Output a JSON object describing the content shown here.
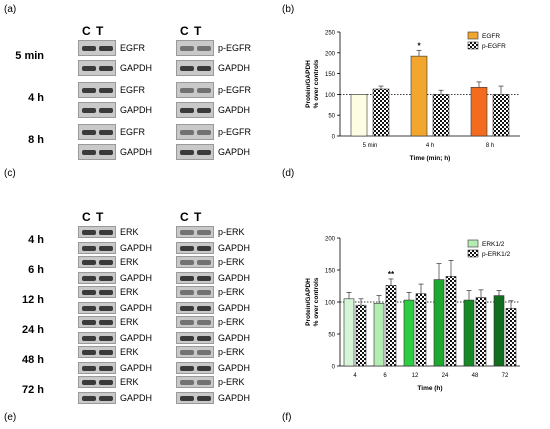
{
  "panels": {
    "a": "(a)",
    "b": "(b)",
    "c": "(c)",
    "d": "(d)",
    "e": "(e)",
    "f": "(f)"
  },
  "blots_top": {
    "lanes": [
      "C",
      "T",
      "C",
      "T"
    ],
    "rows": [
      {
        "time": "5 min",
        "left_main": "EGFR",
        "left_ref": "GAPDH",
        "right_main": "p-EGFR",
        "right_ref": "GAPDH"
      },
      {
        "time": "4 h",
        "left_main": "EGFR",
        "left_ref": "GAPDH",
        "right_main": "p-EGFR",
        "right_ref": "GAPDH"
      },
      {
        "time": "8 h",
        "left_main": "EGFR",
        "left_ref": "GAPDH",
        "right_main": "p-EGFR",
        "right_ref": "GAPDH"
      }
    ]
  },
  "blots_bottom": {
    "lanes": [
      "C",
      "T",
      "C",
      "T"
    ],
    "rows": [
      {
        "time": "4 h",
        "left_main": "ERK",
        "left_ref": "GAPDH",
        "right_main": "p-ERK",
        "right_ref": "GAPDH"
      },
      {
        "time": "6 h",
        "left_main": "ERK",
        "left_ref": "GAPDH",
        "right_main": "p-ERK",
        "right_ref": "GAPDH"
      },
      {
        "time": "12 h",
        "left_main": "ERK",
        "left_ref": "GAPDH",
        "right_main": "p-ERK",
        "right_ref": "GAPDH"
      },
      {
        "time": "24 h",
        "left_main": "ERK",
        "left_ref": "GAPDH",
        "right_main": "p-ERK",
        "right_ref": "GAPDH"
      },
      {
        "time": "48 h",
        "left_main": "ERK",
        "left_ref": "GAPDH",
        "right_main": "p-ERK",
        "right_ref": "GAPDH"
      },
      {
        "time": "72 h",
        "left_main": "ERK",
        "left_ref": "GAPDH",
        "right_main": "p-ERK",
        "right_ref": "GAPDH"
      }
    ]
  },
  "chart_data": [
    {
      "type": "bar",
      "ylabel": "Protein/GAPDH\n% over controls",
      "xlabel": "Time (min; h)",
      "ylim": [
        0,
        250
      ],
      "yticks": [
        0,
        50,
        100,
        150,
        200,
        250
      ],
      "categories": [
        "5 min",
        "4 h",
        "8 h"
      ],
      "reference_line": 100,
      "legend_position": "top-right",
      "series": [
        {
          "name": "EGFR",
          "values": [
            100,
            192,
            117
          ],
          "errors": [
            0,
            14,
            13
          ],
          "colors": [
            "#fdfde3",
            "#f2a62e",
            "#f26b1e"
          ],
          "pattern": "solid"
        },
        {
          "name": "p-EGFR",
          "values": [
            113,
            100,
            100
          ],
          "errors": [
            7,
            10,
            20
          ],
          "colors": [
            "#ffffff",
            "#ffffff",
            "#ffffff"
          ],
          "pattern": "checker"
        }
      ],
      "annotations": [
        {
          "category": "4 h",
          "series": "EGFR",
          "text": "*"
        }
      ]
    },
    {
      "type": "bar",
      "ylabel": "Protein/GAPDH\n% over controls",
      "xlabel": "Time (h)",
      "ylim": [
        0,
        200
      ],
      "yticks": [
        0,
        50,
        100,
        150,
        200
      ],
      "categories": [
        "4",
        "6",
        "12",
        "24",
        "48",
        "72"
      ],
      "reference_line": 100,
      "legend_position": "top-right",
      "series": [
        {
          "name": "ERK1/2",
          "values": [
            105,
            98,
            103,
            135,
            103,
            110
          ],
          "errors": [
            10,
            12,
            12,
            25,
            15,
            8
          ],
          "colors": [
            "#d6f5d6",
            "#b4ecb4",
            "#2ecc40",
            "#1fa830",
            "#178a26",
            "#126e1e"
          ],
          "pattern": "solid"
        },
        {
          "name": "p-ERK1/2",
          "values": [
            95,
            126,
            113,
            140,
            107,
            90
          ],
          "errors": [
            10,
            10,
            15,
            25,
            12,
            12
          ],
          "colors": [
            "#ffffff",
            "#ffffff",
            "#ffffff",
            "#ffffff",
            "#ffffff",
            "#ffffff"
          ],
          "pattern": "checker"
        }
      ],
      "annotations": [
        {
          "category": "6",
          "series": "p-ERK1/2",
          "text": "**"
        }
      ]
    }
  ]
}
